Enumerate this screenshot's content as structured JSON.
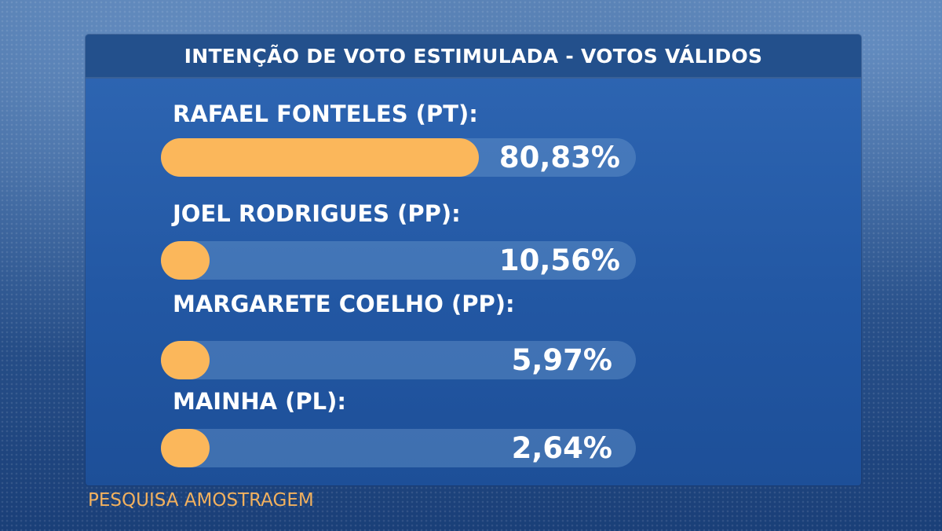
{
  "title": "INTENÇÃO DE VOTO ESTIMULADA - VOTOS VÁLIDOS",
  "source": "PESQUISA AMOSTRAGEM",
  "colors": {
    "bar_fill": "#fbb75b",
    "panel": "#2257a3",
    "source_text": "#f2b15e"
  },
  "chart_data": {
    "type": "bar",
    "orientation": "horizontal",
    "title": "INTENÇÃO DE VOTO ESTIMULADA - VOTOS VÁLIDOS",
    "categories": [
      "RAFAEL FONTELES (PT):",
      "JOEL RODRIGUES (PP):",
      "MARGARETE COELHO (PP):",
      "MAINHA (PL):"
    ],
    "values": [
      80.83,
      10.56,
      5.97,
      2.64
    ],
    "value_labels": [
      "80,83%",
      "10,56%",
      "5,97%",
      "2,64%"
    ],
    "unit": "%",
    "xlim": [
      0,
      100
    ]
  }
}
